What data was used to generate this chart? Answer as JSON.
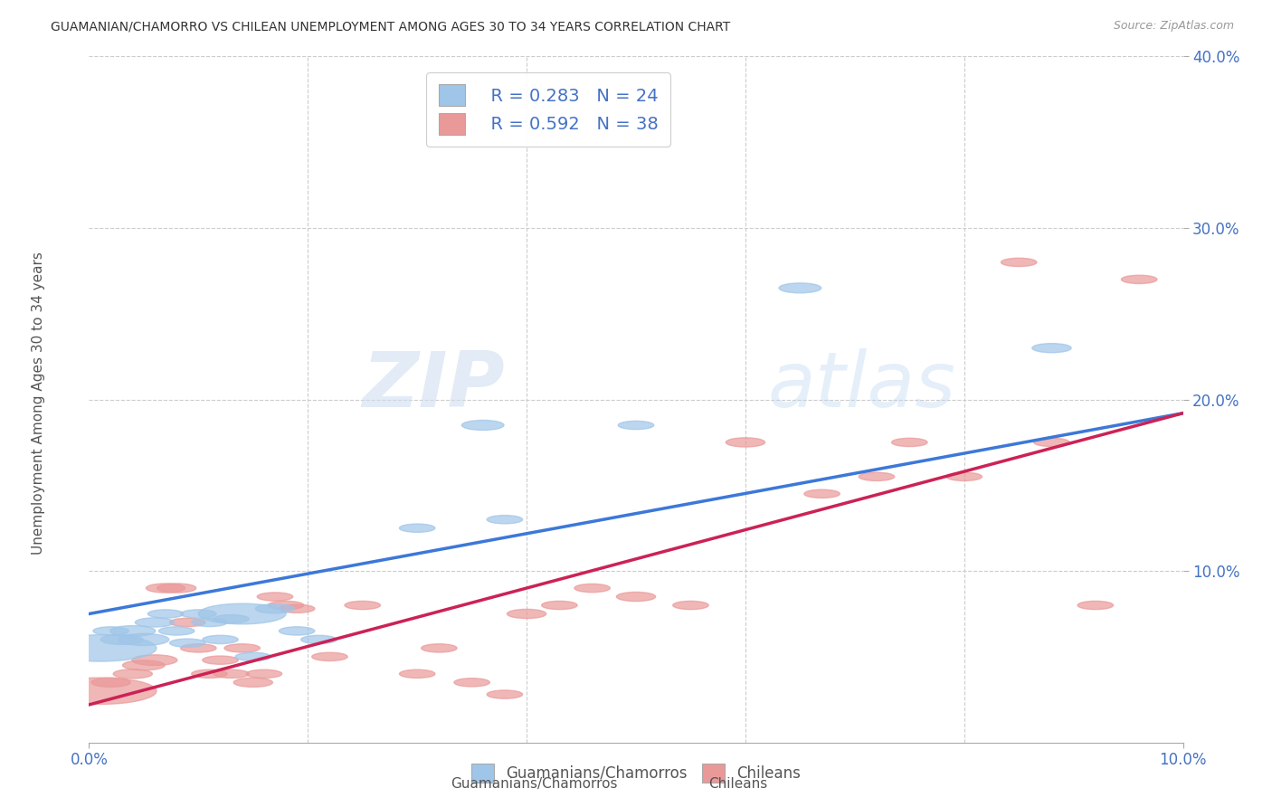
{
  "title": "GUAMANIAN/CHAMORRO VS CHILEAN UNEMPLOYMENT AMONG AGES 30 TO 34 YEARS CORRELATION CHART",
  "source": "Source: ZipAtlas.com",
  "ylabel": "Unemployment Among Ages 30 to 34 years",
  "xlim": [
    0.0,
    0.1
  ],
  "ylim": [
    0.0,
    0.4
  ],
  "xticks": [
    0.0,
    0.1
  ],
  "xtick_labels": [
    "0.0%",
    "10.0%"
  ],
  "yticks": [
    0.1,
    0.2,
    0.3,
    0.4
  ],
  "ytick_labels": [
    "10.0%",
    "20.0%",
    "30.0%",
    "40.0%"
  ],
  "guamanian_R": 0.283,
  "guamanian_N": 24,
  "chilean_R": 0.592,
  "chilean_N": 38,
  "blue_color": "#9fc5e8",
  "pink_color": "#ea9999",
  "blue_line_color": "#3c78d8",
  "pink_line_color": "#cc2255",
  "legend_label_1": "Guamanians/Chamorros",
  "legend_label_2": "Chileans",
  "watermark_zip": "ZIP",
  "watermark_atlas": "atlas",
  "blue_line_x0": 0.0,
  "blue_line_y0": 0.075,
  "blue_line_x1": 0.1,
  "blue_line_y1": 0.192,
  "pink_line_x0": 0.0,
  "pink_line_y0": 0.022,
  "pink_line_x1": 0.1,
  "pink_line_y1": 0.192,
  "guamanian_x": [
    0.001,
    0.002,
    0.003,
    0.004,
    0.005,
    0.006,
    0.007,
    0.008,
    0.009,
    0.01,
    0.011,
    0.012,
    0.013,
    0.014,
    0.015,
    0.017,
    0.019,
    0.021,
    0.03,
    0.036,
    0.038,
    0.05,
    0.065,
    0.088
  ],
  "guamanian_y": [
    0.055,
    0.065,
    0.06,
    0.065,
    0.06,
    0.07,
    0.075,
    0.065,
    0.058,
    0.075,
    0.07,
    0.06,
    0.072,
    0.075,
    0.05,
    0.078,
    0.065,
    0.06,
    0.125,
    0.185,
    0.13,
    0.185,
    0.265,
    0.23
  ],
  "guamanian_sizes": [
    500,
    50,
    70,
    80,
    100,
    60,
    50,
    50,
    50,
    50,
    50,
    50,
    50,
    300,
    50,
    60,
    50,
    50,
    50,
    70,
    50,
    50,
    70,
    60
  ],
  "chilean_x": [
    0.001,
    0.002,
    0.004,
    0.005,
    0.006,
    0.007,
    0.008,
    0.009,
    0.01,
    0.011,
    0.012,
    0.013,
    0.014,
    0.015,
    0.016,
    0.017,
    0.018,
    0.019,
    0.022,
    0.025,
    0.03,
    0.032,
    0.035,
    0.038,
    0.04,
    0.043,
    0.046,
    0.05,
    0.055,
    0.06,
    0.067,
    0.072,
    0.075,
    0.08,
    0.085,
    0.088,
    0.092,
    0.096
  ],
  "chilean_y": [
    0.03,
    0.035,
    0.04,
    0.045,
    0.048,
    0.09,
    0.09,
    0.07,
    0.055,
    0.04,
    0.048,
    0.04,
    0.055,
    0.035,
    0.04,
    0.085,
    0.08,
    0.078,
    0.05,
    0.08,
    0.04,
    0.055,
    0.035,
    0.028,
    0.075,
    0.08,
    0.09,
    0.085,
    0.08,
    0.175,
    0.145,
    0.155,
    0.175,
    0.155,
    0.28,
    0.175,
    0.08,
    0.27
  ],
  "chilean_sizes": [
    500,
    60,
    60,
    70,
    80,
    60,
    60,
    50,
    50,
    50,
    50,
    50,
    50,
    60,
    50,
    50,
    50,
    50,
    50,
    50,
    50,
    50,
    50,
    50,
    60,
    50,
    50,
    60,
    50,
    60,
    50,
    50,
    50,
    50,
    50,
    50,
    50,
    50
  ]
}
